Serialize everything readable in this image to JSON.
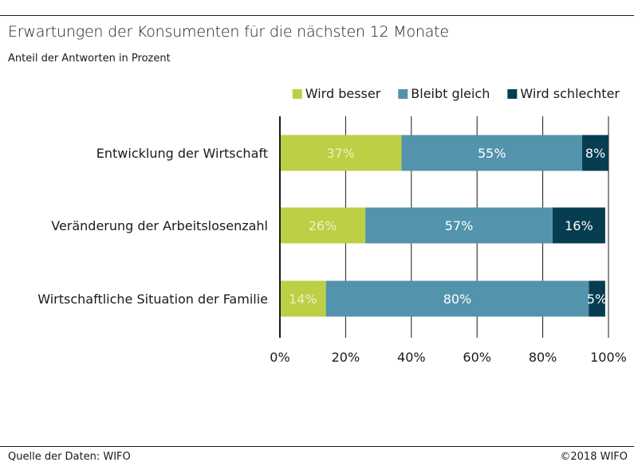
{
  "title": "Erwartungen der Konsumenten für die nächsten 12 Monate",
  "subtitle": "Anteil der Antworten in Prozent",
  "source": "Quelle der Daten: WIFO",
  "copyright": "©2018 WIFO",
  "chart_data": {
    "type": "bar",
    "orientation": "horizontal",
    "stacked": true,
    "categories": [
      "Entwicklung der Wirtschaft",
      "Veränderung der Arbeitslosenzahl",
      "Wirtschaftliche Situation der Familie"
    ],
    "series": [
      {
        "name": "Wird besser",
        "color": "#bccf45",
        "label_color": "#ecf1c4",
        "values": [
          37,
          26,
          14
        ],
        "labels": [
          "37%",
          "26%",
          "14%"
        ]
      },
      {
        "name": "Bleibt gleich",
        "color": "#5393ac",
        "label_color": "#ffffff",
        "values": [
          55,
          57,
          80
        ],
        "labels": [
          "55%",
          "57%",
          "80%"
        ]
      },
      {
        "name": "Wird schlechter",
        "color": "#073d51",
        "label_color": "#ffffff",
        "values": [
          8,
          16,
          5
        ],
        "labels": [
          "8%",
          "16%",
          "5%"
        ]
      }
    ],
    "xlim": [
      0,
      100
    ],
    "xticks": [
      0,
      20,
      40,
      60,
      80,
      100
    ],
    "xtick_labels": [
      "0%",
      "20%",
      "40%",
      "60%",
      "80%",
      "100%"
    ],
    "grid": true,
    "legend": "top-right"
  }
}
